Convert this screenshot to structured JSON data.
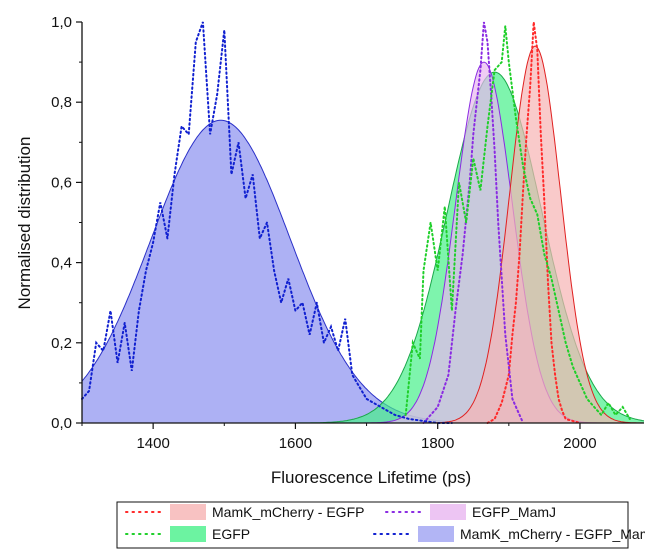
{
  "chart_data": {
    "type": "area",
    "xlabel": "Fluorescence Lifetime (ps)",
    "ylabel": "Normalised distribution",
    "xlim": [
      1300,
      2090
    ],
    "ylim": [
      0,
      1.0
    ],
    "xticks": [
      "1400",
      "1600",
      "1800",
      "2000"
    ],
    "yticks": [
      "0,0",
      "0,2",
      "0,4",
      "0,6",
      "0,8",
      "1,0"
    ],
    "grid": false,
    "legend_position": "bottom",
    "fits": [
      {
        "legend": "MamK_mCherry - EGFP",
        "fill": "#f6b3b3",
        "line": "#e02020",
        "dots": "#ff2a2a",
        "center": 1937,
        "sigma": 36,
        "peak": 0.94
      },
      {
        "legend": "EGFP_MamJ",
        "fill": "#e8b7f0",
        "line": "#8a2be2",
        "dots": "#8a2be2",
        "center": 1865,
        "sigma": 40,
        "peak": 0.9
      },
      {
        "legend": "EGFP",
        "fill": "#47f08a",
        "line": "#1aa84a",
        "dots": "#1fcf2a",
        "center": 1880,
        "sigma": 66,
        "peak": 0.875
      },
      {
        "legend": "MamK_mCherry - EGFP_MamJ",
        "fill": "#9fa3f2",
        "line": "#2a30c8",
        "dots": "#1020d0",
        "center": 1495,
        "sigma": 98,
        "peak": 0.755
      }
    ],
    "raw_series": {
      "MamK_mCherry - EGFP": {
        "x": [
          1870,
          1880,
          1890,
          1900,
          1905,
          1910,
          1915,
          1920,
          1925,
          1930,
          1935,
          1940,
          1945,
          1950,
          1955,
          1960,
          1965,
          1970,
          1975,
          1980,
          1990,
          2000
        ],
        "y": [
          0.0,
          0.01,
          0.05,
          0.12,
          0.22,
          0.3,
          0.42,
          0.58,
          0.72,
          0.84,
          1.0,
          0.93,
          0.72,
          0.55,
          0.35,
          0.2,
          0.12,
          0.06,
          0.03,
          0.01,
          0.005,
          0.0
        ]
      },
      "EGFP_MamJ": {
        "x": [
          1780,
          1800,
          1815,
          1825,
          1835,
          1845,
          1850,
          1855,
          1860,
          1865,
          1870,
          1875,
          1880,
          1885,
          1895,
          1905,
          1920
        ],
        "y": [
          0.0,
          0.04,
          0.12,
          0.28,
          0.42,
          0.6,
          0.72,
          0.8,
          0.88,
          1.0,
          0.95,
          0.82,
          0.68,
          0.5,
          0.22,
          0.06,
          0.0
        ]
      },
      "EGFP": {
        "x": [
          1755,
          1765,
          1775,
          1780,
          1790,
          1800,
          1810,
          1820,
          1830,
          1840,
          1850,
          1860,
          1870,
          1880,
          1890,
          1895,
          1900,
          1910,
          1920,
          1930,
          1940,
          1950,
          1960,
          1970,
          1980,
          1990,
          2000,
          2010,
          2020,
          2030,
          2040,
          2050,
          2060,
          2070
        ],
        "y": [
          0.02,
          0.2,
          0.16,
          0.38,
          0.5,
          0.38,
          0.54,
          0.28,
          0.6,
          0.5,
          0.66,
          0.58,
          0.74,
          0.88,
          0.9,
          0.99,
          0.9,
          0.76,
          0.64,
          0.56,
          0.52,
          0.42,
          0.36,
          0.28,
          0.2,
          0.14,
          0.1,
          0.06,
          0.04,
          0.02,
          0.05,
          0.02,
          0.04,
          0.01
        ]
      },
      "MamK_mCherry - EGFP_MamJ": {
        "x": [
          1300,
          1310,
          1320,
          1330,
          1340,
          1350,
          1360,
          1370,
          1380,
          1390,
          1400,
          1410,
          1420,
          1430,
          1440,
          1450,
          1460,
          1470,
          1480,
          1490,
          1500,
          1510,
          1520,
          1530,
          1540,
          1550,
          1560,
          1570,
          1580,
          1590,
          1600,
          1610,
          1620,
          1630,
          1640,
          1650,
          1660,
          1670,
          1680,
          1690,
          1700,
          1720,
          1740,
          1760,
          1780,
          1800,
          1820
        ],
        "y": [
          0.06,
          0.08,
          0.2,
          0.18,
          0.28,
          0.15,
          0.25,
          0.13,
          0.28,
          0.38,
          0.45,
          0.55,
          0.46,
          0.62,
          0.74,
          0.72,
          0.95,
          1.0,
          0.72,
          0.82,
          0.98,
          0.62,
          0.7,
          0.56,
          0.62,
          0.46,
          0.5,
          0.38,
          0.3,
          0.36,
          0.28,
          0.3,
          0.22,
          0.3,
          0.2,
          0.24,
          0.18,
          0.26,
          0.12,
          0.09,
          0.06,
          0.04,
          0.02,
          0.01,
          0.005,
          0.0,
          0.0
        ]
      }
    }
  }
}
